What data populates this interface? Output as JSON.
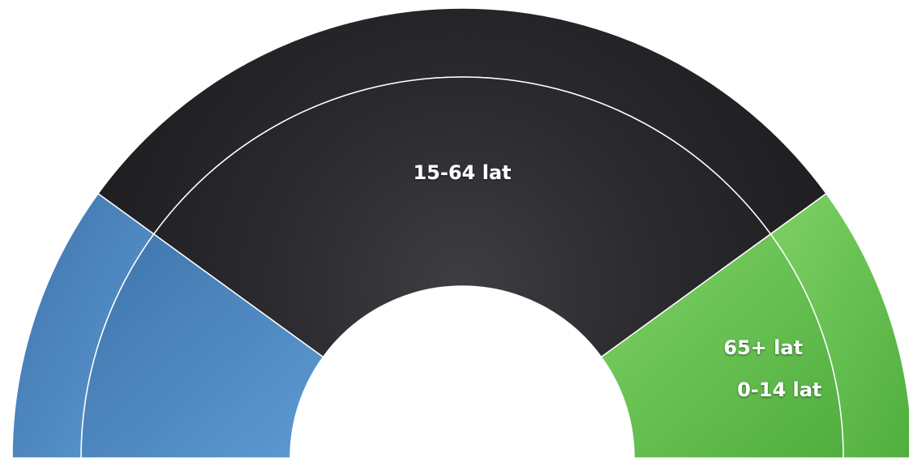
{
  "chart_data": {
    "type": "pie",
    "layout": "semicircle-donut",
    "categories": [
      "0-14 lat",
      "15-64 lat",
      "65+ lat"
    ],
    "outer_ring_values": [
      20,
      60,
      20
    ],
    "inner_ring_values": [
      20,
      60,
      20
    ],
    "colors": [
      "#4e88c4",
      "#222224",
      "#5cba47"
    ],
    "title": "",
    "legend": "none"
  }
}
